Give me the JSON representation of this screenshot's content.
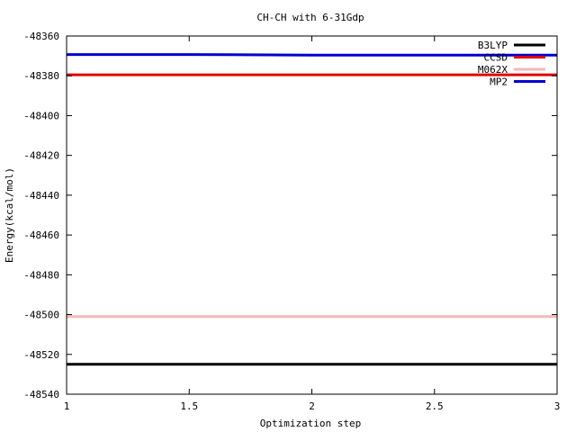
{
  "chart_data": {
    "type": "line",
    "title": "CH-CH with 6-31Gdp",
    "xlabel": "Optimization step",
    "ylabel": "Energy(kcal/mol)",
    "xlim": [
      1,
      3
    ],
    "ylim": [
      -48540,
      -48360
    ],
    "xticks": [
      1,
      1.5,
      2,
      2.5,
      3
    ],
    "xtick_labels": [
      "1",
      "1.5",
      "2",
      "2.5",
      "3"
    ],
    "yticks": [
      -48360,
      -48380,
      -48400,
      -48420,
      -48440,
      -48460,
      -48480,
      -48500,
      -48520,
      -48540
    ],
    "ytick_labels": [
      "-48360",
      "-48380",
      "-48400",
      "-48420",
      "-48440",
      "-48460",
      "-48480",
      "-48500",
      "-48520",
      "-48540"
    ],
    "grid": false,
    "legend_position": "top-right",
    "series": [
      {
        "name": "B3LYP",
        "color": "#000000",
        "x": [
          1,
          2,
          3
        ],
        "y": [
          -48525,
          -48525,
          -48525
        ]
      },
      {
        "name": "CCSD",
        "color": "#e00000",
        "x": [
          1,
          2,
          3
        ],
        "y": [
          -48379.5,
          -48379.5,
          -48379.5
        ]
      },
      {
        "name": "M062X",
        "color": "#f4b8b8",
        "x": [
          1,
          2,
          3
        ],
        "y": [
          -48501,
          -48501,
          -48501
        ]
      },
      {
        "name": "MP2",
        "color": "#0000d0",
        "x": [
          1,
          1.5,
          2,
          3
        ],
        "y": [
          -48369.3,
          -48369.3,
          -48369.6,
          -48369.6
        ]
      }
    ]
  }
}
